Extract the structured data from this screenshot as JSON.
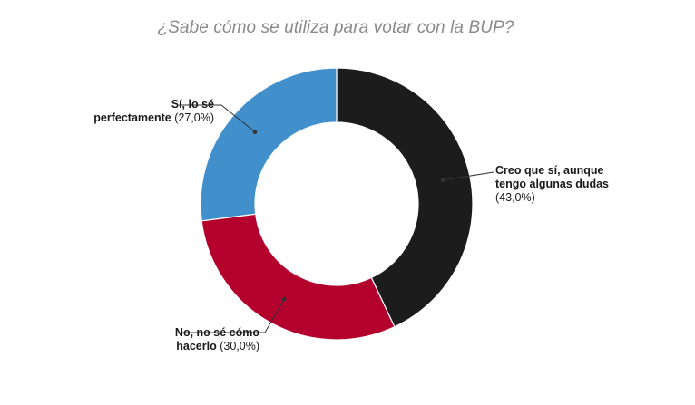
{
  "chart_data": {
    "type": "pie",
    "title": "¿Sabe cómo se utiliza para votar con la BUP?",
    "donut": true,
    "slices": [
      {
        "name": "Creo que sí, aunque tengo algunas dudas",
        "line1": "Creo que sí, aunque",
        "line2": "tengo algunas dudas",
        "pct_label": "(43,0%)",
        "value": 43.0,
        "color": "#1c1c1c"
      },
      {
        "name": "No, no sé cómo hacerlo",
        "line1": "No, no sé cómo",
        "line2": "hacerlo",
        "pct_label": "(30,0%)",
        "value": 30.0,
        "color": "#b3002d"
      },
      {
        "name": "Sí, lo sé perfectamente",
        "line1": "Sí, lo sé",
        "line2": "perfectamente",
        "pct_label": "(27,0%)",
        "value": 27.0,
        "color": "#4190cc"
      }
    ]
  }
}
